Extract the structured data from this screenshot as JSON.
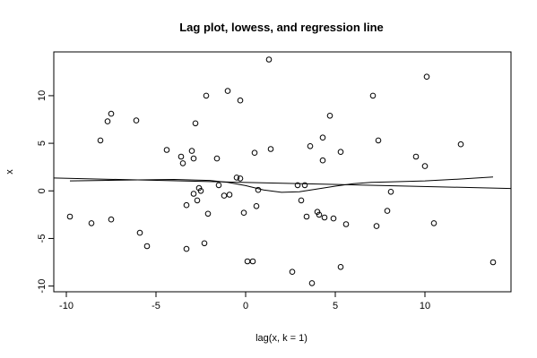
{
  "chart_data": {
    "type": "scatter",
    "title": "Lag plot, lowess, and regression line",
    "xlabel": "lag(x, k = 1)",
    "ylabel": "x",
    "xlim": [
      -10.7,
      14.8
    ],
    "ylim": [
      -10.6,
      14.6
    ],
    "xticks": [
      -10,
      -5,
      0,
      5,
      10
    ],
    "yticks": [
      -10,
      -5,
      0,
      5,
      10
    ],
    "grid": false,
    "points": [
      {
        "x": -9.8,
        "y": -2.7
      },
      {
        "x": -8.6,
        "y": -3.4
      },
      {
        "x": -8.1,
        "y": 5.3
      },
      {
        "x": -7.7,
        "y": 7.3
      },
      {
        "x": -7.5,
        "y": 8.1
      },
      {
        "x": -7.5,
        "y": -3.0
      },
      {
        "x": -6.1,
        "y": 7.4
      },
      {
        "x": -5.9,
        "y": -4.4
      },
      {
        "x": -5.5,
        "y": -5.8
      },
      {
        "x": -4.4,
        "y": 4.3
      },
      {
        "x": -3.6,
        "y": 3.6
      },
      {
        "x": -3.5,
        "y": 2.9
      },
      {
        "x": -3.3,
        "y": -6.1
      },
      {
        "x": -3.3,
        "y": -1.5
      },
      {
        "x": -3.0,
        "y": 4.2
      },
      {
        "x": -2.9,
        "y": -0.3
      },
      {
        "x": -2.9,
        "y": 3.4
      },
      {
        "x": -2.8,
        "y": 7.1
      },
      {
        "x": -2.7,
        "y": -1.0
      },
      {
        "x": -2.6,
        "y": 0.3
      },
      {
        "x": -2.5,
        "y": 0.0
      },
      {
        "x": -2.3,
        "y": -5.5
      },
      {
        "x": -2.2,
        "y": 10.0
      },
      {
        "x": -2.1,
        "y": -2.4
      },
      {
        "x": -1.6,
        "y": 3.4
      },
      {
        "x": -1.5,
        "y": 0.6
      },
      {
        "x": -1.2,
        "y": -0.5
      },
      {
        "x": -1.0,
        "y": 10.5
      },
      {
        "x": -0.9,
        "y": -0.4
      },
      {
        "x": -0.5,
        "y": 1.4
      },
      {
        "x": -0.3,
        "y": 1.3
      },
      {
        "x": -0.3,
        "y": 9.5
      },
      {
        "x": -0.1,
        "y": -2.3
      },
      {
        "x": 0.1,
        "y": -7.4
      },
      {
        "x": 0.4,
        "y": -7.4
      },
      {
        "x": 0.5,
        "y": 4.0
      },
      {
        "x": 0.6,
        "y": -1.6
      },
      {
        "x": 0.7,
        "y": 0.1
      },
      {
        "x": 1.3,
        "y": 13.8
      },
      {
        "x": 1.4,
        "y": 4.4
      },
      {
        "x": 2.6,
        "y": -8.5
      },
      {
        "x": 2.9,
        "y": 0.6
      },
      {
        "x": 3.1,
        "y": -1.0
      },
      {
        "x": 3.3,
        "y": 0.6
      },
      {
        "x": 3.4,
        "y": -2.7
      },
      {
        "x": 3.6,
        "y": 4.7
      },
      {
        "x": 3.7,
        "y": -9.7
      },
      {
        "x": 4.0,
        "y": -2.2
      },
      {
        "x": 4.1,
        "y": -2.5
      },
      {
        "x": 4.3,
        "y": 3.2
      },
      {
        "x": 4.3,
        "y": 5.6
      },
      {
        "x": 4.4,
        "y": -2.8
      },
      {
        "x": 4.7,
        "y": 7.9
      },
      {
        "x": 4.9,
        "y": -2.9
      },
      {
        "x": 5.3,
        "y": 4.1
      },
      {
        "x": 5.3,
        "y": -8.0
      },
      {
        "x": 5.6,
        "y": -3.5
      },
      {
        "x": 7.1,
        "y": 10.0
      },
      {
        "x": 7.3,
        "y": -3.7
      },
      {
        "x": 7.4,
        "y": 5.3
      },
      {
        "x": 7.9,
        "y": -2.1
      },
      {
        "x": 8.1,
        "y": -0.1
      },
      {
        "x": 9.5,
        "y": 3.6
      },
      {
        "x": 10.0,
        "y": 2.6
      },
      {
        "x": 10.1,
        "y": 12.0
      },
      {
        "x": 10.5,
        "y": -3.4
      },
      {
        "x": 12.0,
        "y": 4.9
      },
      {
        "x": 13.8,
        "y": -7.5
      }
    ],
    "series": [
      {
        "type": "line",
        "x": [
          -10.7,
          14.8
        ],
        "y": [
          1.35,
          0.25
        ]
      },
      {
        "type": "line",
        "x": [
          -9.8,
          -8,
          -6,
          -4,
          -2,
          -1,
          0,
          1,
          2,
          3,
          4,
          5,
          6,
          7,
          8,
          10,
          12,
          13.8
        ],
        "y": [
          1.05,
          1.1,
          1.15,
          1.2,
          1.1,
          0.9,
          0.55,
          0.1,
          -0.15,
          -0.1,
          0.2,
          0.5,
          0.75,
          0.9,
          0.95,
          1.05,
          1.25,
          1.45
        ]
      }
    ]
  }
}
